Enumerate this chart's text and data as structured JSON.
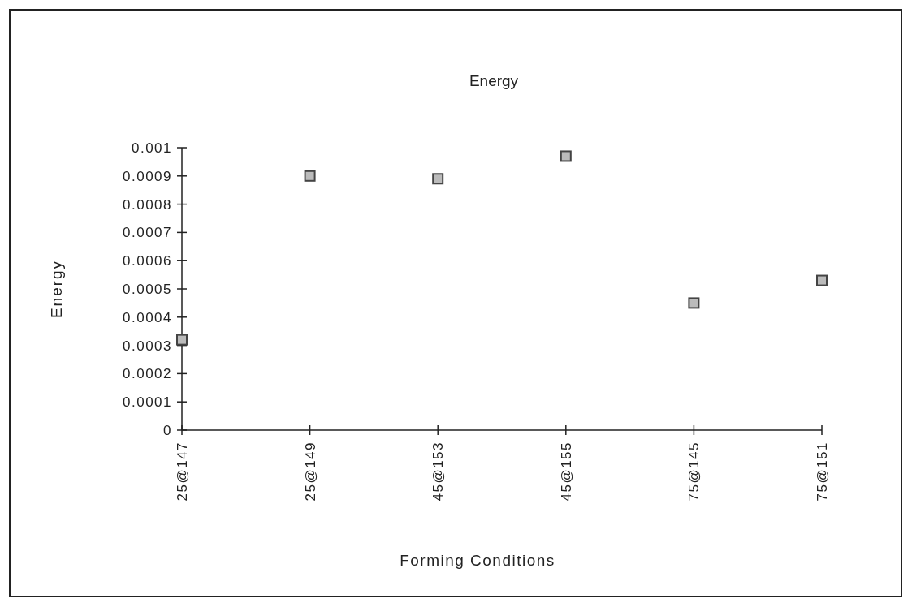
{
  "chart_data": {
    "type": "scatter",
    "title": "Energy",
    "xlabel": "Forming Conditions",
    "ylabel": "Energy",
    "categories": [
      "25@147",
      "25@149",
      "45@153",
      "45@155",
      "75@145",
      "75@151"
    ],
    "series": [
      {
        "color": "#444444",
        "values": [
          0.00032,
          0.0009,
          0.00089,
          0.00097,
          0.00045,
          0.00053
        ]
      }
    ],
    "ylim": [
      0,
      0.001
    ],
    "yticks": [
      0,
      0.0001,
      0.0002,
      0.0003,
      0.0004,
      0.0005,
      0.0006,
      0.0007,
      0.0008,
      0.0009,
      0.001
    ],
    "marker": "square"
  }
}
